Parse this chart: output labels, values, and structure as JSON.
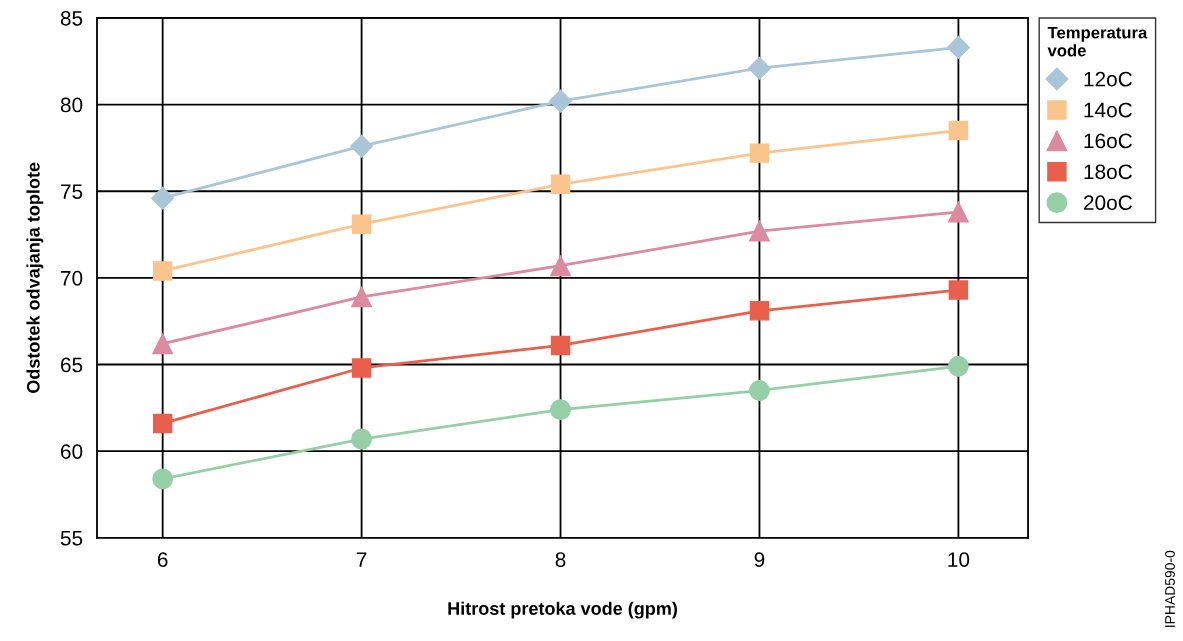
{
  "chart_data": {
    "type": "line",
    "xlabel": "Hitrost pretoka vode (gpm)",
    "ylabel": "Odstotek odvajanja toplote",
    "legend_title": "Temperatura\nvode",
    "x": [
      6,
      7,
      8,
      9,
      10
    ],
    "xlim": [
      5.67,
      10.35
    ],
    "xticks": [
      6,
      7,
      8,
      9,
      10
    ],
    "ylim": [
      55,
      85
    ],
    "yticks": [
      55,
      60,
      65,
      70,
      75,
      80,
      85
    ],
    "grid": true,
    "legend": "right",
    "annotations": [
      "IPHAD590-0"
    ],
    "series": [
      {
        "name": "12oC",
        "color": "#a9c6d9",
        "marker": "diamond",
        "values": [
          74.6,
          77.6,
          80.2,
          82.1,
          83.3
        ]
      },
      {
        "name": "14oC",
        "color": "#fbc48c",
        "marker": "square",
        "values": [
          70.4,
          73.1,
          75.4,
          77.2,
          78.5
        ]
      },
      {
        "name": "16oC",
        "color": "#db8aa0",
        "marker": "triangle",
        "values": [
          66.2,
          68.9,
          70.7,
          72.7,
          73.8
        ]
      },
      {
        "name": "18oC",
        "color": "#e8604c",
        "marker": "square",
        "values": [
          61.6,
          64.8,
          66.1,
          68.1,
          69.3
        ]
      },
      {
        "name": "20oC",
        "color": "#96cfa6",
        "marker": "circle",
        "values": [
          58.4,
          60.7,
          62.4,
          63.5,
          64.9
        ]
      }
    ]
  }
}
